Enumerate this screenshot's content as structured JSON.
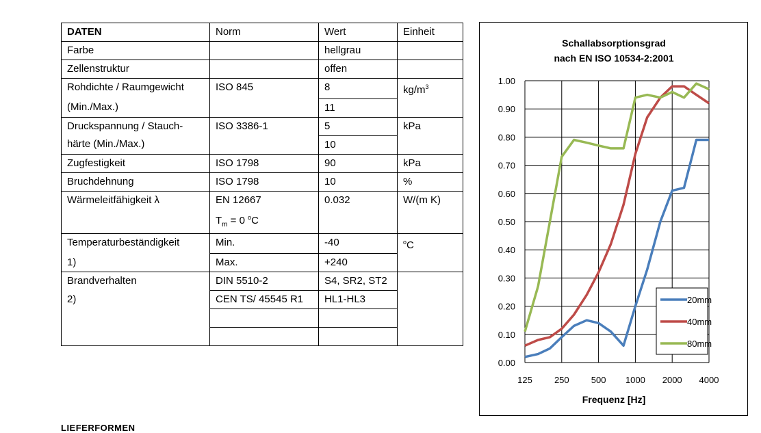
{
  "table": {
    "headers": [
      "DATEN",
      "Norm",
      "Wert",
      "Einheit"
    ],
    "rows": [
      {
        "label": "Farbe",
        "norm": "",
        "wert": "hellgrau",
        "unit": ""
      },
      {
        "label": "Zellenstruktur",
        "norm": "",
        "wert": "offen",
        "unit": ""
      },
      {
        "label1": "Rohdichte / Raumgewicht",
        "label2": "(Min./Max.)",
        "norm": "ISO 845",
        "wert1": "8",
        "wert2": "11",
        "unit_base": "kg/m",
        "unit_sup": "3"
      },
      {
        "label1": "Druckspannung / Stauch-",
        "label2": "härte (Min./Max.)",
        "norm": "ISO 3386-1",
        "wert1": "5",
        "wert2": "10",
        "unit": "kPa"
      },
      {
        "label": "Zugfestigkeit",
        "norm": "ISO 1798",
        "wert": "90",
        "unit": "kPa"
      },
      {
        "label": "Bruchdehnung",
        "norm": "ISO 1798",
        "wert": "10",
        "unit": "%"
      },
      {
        "label": "Wärmeleitfähigkeit λ",
        "norm1": "EN 12667",
        "norm2_pre": "T",
        "norm2_sub": "m",
        "norm2_mid": " = 0 ",
        "norm2_sup": "o",
        "norm2_post": "C",
        "wert": "0.032",
        "unit": "W/(m K)"
      },
      {
        "label1": "Temperaturbeständigkeit",
        "label2": "1)",
        "norm1": "Min.",
        "norm2": "Max.",
        "wert1": "-40",
        "wert2": "+240",
        "unit_sup": "o",
        "unit_post": "C"
      },
      {
        "label1": "Brandverhalten",
        "label2": "2)",
        "norm1": "DIN 5510-2",
        "norm2": "CEN TS/ 45545 R1",
        "wert1": "S4, SR2, ST2",
        "wert2": "HL1-HL3"
      }
    ]
  },
  "chart_data": {
    "type": "line",
    "title": "Schallabsorptionsgrad",
    "subtitle": "nach EN ISO 10534-2:2001",
    "xlabel": "Frequenz [Hz]",
    "ylabel": "",
    "x_scale": "log",
    "x_ticks": [
      125,
      250,
      500,
      1000,
      2000,
      4000
    ],
    "x_tick_labels": [
      "125",
      "250",
      "500",
      "1000",
      "2000",
      "4000"
    ],
    "ylim": [
      0,
      1
    ],
    "y_ticks": [
      "0.00",
      "0.10",
      "0.20",
      "0.30",
      "0.40",
      "0.50",
      "0.60",
      "0.70",
      "0.80",
      "0.90",
      "1.00"
    ],
    "grid": true,
    "legend_position": "bottom-right",
    "series": [
      {
        "name": "20mm",
        "color": "#4a7ebb",
        "x": [
          125,
          160,
          200,
          250,
          315,
          400,
          500,
          630,
          800,
          1000,
          1250,
          1600,
          2000,
          2500,
          3150,
          4000
        ],
        "y": [
          0.02,
          0.03,
          0.05,
          0.09,
          0.13,
          0.15,
          0.14,
          0.11,
          0.06,
          0.2,
          0.33,
          0.5,
          0.61,
          0.62,
          0.79,
          0.79
        ]
      },
      {
        "name": "40mm",
        "color": "#be4b48",
        "x": [
          125,
          160,
          200,
          250,
          315,
          400,
          500,
          630,
          800,
          1000,
          1250,
          1600,
          2000,
          2500,
          3150,
          4000
        ],
        "y": [
          0.06,
          0.08,
          0.09,
          0.12,
          0.17,
          0.24,
          0.32,
          0.42,
          0.56,
          0.74,
          0.87,
          0.94,
          0.98,
          0.98,
          0.95,
          0.92
        ]
      },
      {
        "name": "80mm",
        "color": "#98b954",
        "x": [
          125,
          160,
          200,
          250,
          315,
          400,
          500,
          630,
          800,
          1000,
          1250,
          1600,
          2000,
          2500,
          3150,
          4000
        ],
        "y": [
          0.11,
          0.27,
          0.5,
          0.73,
          0.79,
          0.78,
          0.77,
          0.76,
          0.76,
          0.94,
          0.95,
          0.94,
          0.96,
          0.94,
          0.99,
          0.97
        ]
      }
    ]
  },
  "footer": {
    "heading": "LIEFERFORMEN"
  }
}
